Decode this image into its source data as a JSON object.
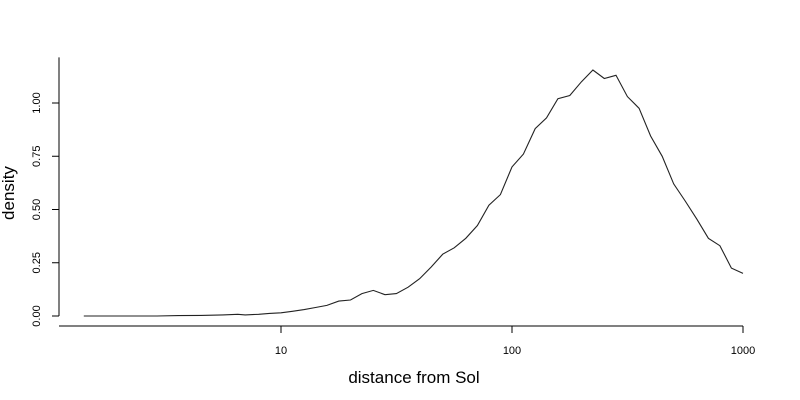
{
  "chart_data": {
    "type": "line",
    "title": "",
    "xlabel": "distance from Sol",
    "ylabel": "density",
    "x_scale": "log",
    "xlim": [
      1.3,
      1000
    ],
    "ylim": [
      0,
      1.2
    ],
    "grid": false,
    "legend": "none",
    "x_ticks": [
      {
        "value": 10,
        "label": "10"
      },
      {
        "value": 100,
        "label": "100"
      },
      {
        "value": 1000,
        "label": "1000"
      }
    ],
    "y_ticks": [
      {
        "value": 0,
        "label": "0.00"
      },
      {
        "value": 0.25,
        "label": "0.25"
      },
      {
        "value": 0.5,
        "label": "0.50"
      },
      {
        "value": 0.75,
        "label": "0.75"
      },
      {
        "value": 1.0,
        "label": "1.00"
      }
    ],
    "series": [
      {
        "line_color": "#222222",
        "x": [
          1.4,
          1.8,
          2.3,
          2.9,
          3.6,
          4.5,
          5.6,
          6.5,
          7.0,
          8.0,
          8.9,
          10.0,
          11.2,
          12.6,
          14.1,
          15.8,
          17.8,
          20.0,
          22.4,
          25.1,
          28.2,
          31.6,
          35.5,
          39.8,
          44.7,
          50.1,
          56.2,
          63.1,
          70.8,
          79.4,
          89.1,
          100,
          112,
          126,
          141,
          158,
          178,
          200,
          224,
          251,
          282,
          316,
          355,
          398,
          447,
          501,
          562,
          631,
          708,
          794,
          891,
          1000
        ],
        "y": [
          0.0,
          0.0,
          0.0,
          0.0,
          0.002,
          0.003,
          0.005,
          0.008,
          0.005,
          0.008,
          0.012,
          0.015,
          0.022,
          0.03,
          0.04,
          0.05,
          0.07,
          0.075,
          0.105,
          0.12,
          0.1,
          0.105,
          0.135,
          0.175,
          0.23,
          0.29,
          0.32,
          0.365,
          0.425,
          0.52,
          0.57,
          0.7,
          0.76,
          0.88,
          0.93,
          1.02,
          1.035,
          1.1,
          1.155,
          1.115,
          1.13,
          1.03,
          0.975,
          0.845,
          0.75,
          0.62,
          0.54,
          0.455,
          0.365,
          0.33,
          0.225,
          0.2
        ]
      }
    ]
  }
}
